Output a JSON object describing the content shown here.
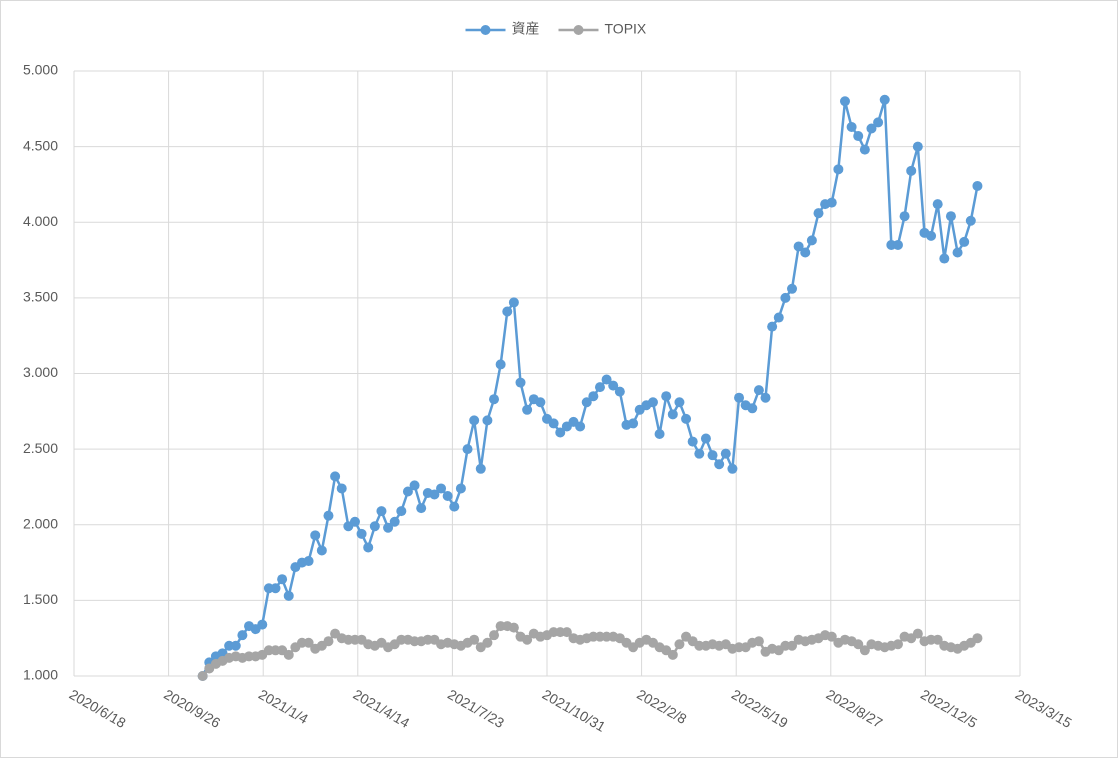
{
  "chart_data": {
    "type": "line",
    "x": [
      "2020/11/1",
      "2020/11/8",
      "2020/11/15",
      "2020/11/22",
      "2020/11/29",
      "2020/12/6",
      "2020/12/13",
      "2020/12/20",
      "2020/12/27",
      "2021/1/3",
      "2021/1/10",
      "2021/1/17",
      "2021/1/24",
      "2021/1/31",
      "2021/2/7",
      "2021/2/14",
      "2021/2/21",
      "2021/2/28",
      "2021/3/7",
      "2021/3/14",
      "2021/3/21",
      "2021/3/28",
      "2021/4/4",
      "2021/4/11",
      "2021/4/18",
      "2021/4/25",
      "2021/5/2",
      "2021/5/9",
      "2021/5/16",
      "2021/5/23",
      "2021/5/30",
      "2021/6/6",
      "2021/6/13",
      "2021/6/20",
      "2021/6/27",
      "2021/7/4",
      "2021/7/11",
      "2021/7/18",
      "2021/7/25",
      "2021/8/1",
      "2021/8/8",
      "2021/8/15",
      "2021/8/22",
      "2021/8/29",
      "2021/9/5",
      "2021/9/12",
      "2021/9/19",
      "2021/9/26",
      "2021/10/3",
      "2021/10/10",
      "2021/10/17",
      "2021/10/24",
      "2021/10/31",
      "2021/11/7",
      "2021/11/14",
      "2021/11/21",
      "2021/11/28",
      "2021/12/5",
      "2021/12/12",
      "2021/12/19",
      "2021/12/26",
      "2022/1/2",
      "2022/1/9",
      "2022/1/16",
      "2022/1/23",
      "2022/1/30",
      "2022/2/6",
      "2022/2/13",
      "2022/2/20",
      "2022/2/27",
      "2022/3/6",
      "2022/3/13",
      "2022/3/20",
      "2022/3/27",
      "2022/4/3",
      "2022/4/10",
      "2022/4/17",
      "2022/4/24",
      "2022/5/1",
      "2022/5/8",
      "2022/5/15",
      "2022/5/22",
      "2022/5/29",
      "2022/6/5",
      "2022/6/12",
      "2022/6/19",
      "2022/6/26",
      "2022/7/3",
      "2022/7/10",
      "2022/7/17",
      "2022/7/24",
      "2022/7/31",
      "2022/8/7",
      "2022/8/14",
      "2022/8/21",
      "2022/8/28",
      "2022/9/4",
      "2022/9/11",
      "2022/9/18",
      "2022/9/25",
      "2022/10/2",
      "2022/10/9",
      "2022/10/16",
      "2022/10/23",
      "2022/10/30",
      "2022/11/6",
      "2022/11/13",
      "2022/11/20",
      "2022/11/27",
      "2022/12/4",
      "2022/12/11",
      "2022/12/18",
      "2022/12/25",
      "2023/1/1",
      "2023/1/8",
      "2023/1/15",
      "2023/1/22",
      "2023/1/29"
    ],
    "series": [
      {
        "name": "資産",
        "color": "#5b9bd5",
        "values": [
          1.0,
          1.09,
          1.13,
          1.15,
          1.2,
          1.2,
          1.27,
          1.33,
          1.31,
          1.34,
          1.58,
          1.58,
          1.64,
          1.53,
          1.72,
          1.75,
          1.76,
          1.93,
          1.83,
          2.06,
          2.32,
          2.24,
          1.99,
          2.02,
          1.94,
          1.85,
          1.99,
          2.09,
          1.98,
          2.02,
          2.09,
          2.22,
          2.26,
          2.11,
          2.21,
          2.2,
          2.24,
          2.19,
          2.12,
          2.24,
          2.5,
          2.69,
          2.37,
          2.69,
          2.83,
          3.06,
          3.41,
          3.47,
          2.94,
          2.76,
          2.83,
          2.81,
          2.7,
          2.67,
          2.61,
          2.65,
          2.68,
          2.65,
          2.81,
          2.85,
          2.91,
          2.96,
          2.92,
          2.88,
          2.66,
          2.67,
          2.76,
          2.79,
          2.81,
          2.6,
          2.85,
          2.73,
          2.81,
          2.7,
          2.55,
          2.47,
          2.57,
          2.46,
          2.4,
          2.47,
          2.37,
          2.84,
          2.79,
          2.77,
          2.89,
          2.84,
          3.31,
          3.37,
          3.5,
          3.56,
          3.84,
          3.8,
          3.88,
          4.06,
          4.12,
          4.13,
          4.35,
          4.8,
          4.63,
          4.57,
          4.48,
          4.62,
          4.66,
          4.81,
          3.85,
          3.85,
          4.04,
          4.34,
          4.5,
          3.93,
          3.91,
          4.12,
          3.76,
          4.04,
          3.8,
          3.87,
          4.01,
          4.24
        ]
      },
      {
        "name": "TOPIX",
        "color": "#a5a5a5",
        "values": [
          1.0,
          1.05,
          1.08,
          1.1,
          1.12,
          1.13,
          1.12,
          1.13,
          1.13,
          1.14,
          1.17,
          1.17,
          1.17,
          1.14,
          1.19,
          1.22,
          1.22,
          1.18,
          1.2,
          1.23,
          1.28,
          1.25,
          1.24,
          1.24,
          1.24,
          1.21,
          1.2,
          1.22,
          1.19,
          1.21,
          1.24,
          1.24,
          1.23,
          1.23,
          1.24,
          1.24,
          1.21,
          1.22,
          1.21,
          1.2,
          1.22,
          1.24,
          1.19,
          1.22,
          1.27,
          1.33,
          1.33,
          1.32,
          1.26,
          1.24,
          1.28,
          1.26,
          1.27,
          1.29,
          1.29,
          1.29,
          1.25,
          1.24,
          1.25,
          1.26,
          1.26,
          1.26,
          1.26,
          1.25,
          1.22,
          1.19,
          1.22,
          1.24,
          1.22,
          1.19,
          1.17,
          1.14,
          1.21,
          1.26,
          1.23,
          1.2,
          1.2,
          1.21,
          1.2,
          1.21,
          1.18,
          1.19,
          1.19,
          1.22,
          1.23,
          1.16,
          1.18,
          1.17,
          1.2,
          1.2,
          1.24,
          1.23,
          1.24,
          1.25,
          1.27,
          1.26,
          1.22,
          1.24,
          1.23,
          1.21,
          1.17,
          1.21,
          1.2,
          1.19,
          1.2,
          1.21,
          1.26,
          1.25,
          1.28,
          1.23,
          1.24,
          1.24,
          1.2,
          1.19,
          1.18,
          1.2,
          1.22,
          1.25
        ]
      }
    ],
    "xlim": [
      "2020/6/18",
      "2023/3/15"
    ],
    "xticks": [
      "2020/6/18",
      "2020/9/26",
      "2021/1/4",
      "2021/4/14",
      "2021/7/23",
      "2021/10/31",
      "2022/2/8",
      "2022/5/19",
      "2022/8/27",
      "2022/12/5",
      "2023/3/15"
    ],
    "ylim": [
      1,
      5
    ],
    "yticks": [
      {
        "value": 1,
        "label": "1.000"
      },
      {
        "value": 1.5,
        "label": "1.500"
      },
      {
        "value": 2,
        "label": "2.000"
      },
      {
        "value": 2.5,
        "label": "2.500"
      },
      {
        "value": 3,
        "label": "3.000"
      },
      {
        "value": 3.5,
        "label": "3.500"
      },
      {
        "value": 4,
        "label": "4.000"
      },
      {
        "value": 4.5,
        "label": "4.500"
      },
      {
        "value": 5,
        "label": "5.000"
      }
    ],
    "grid": true,
    "legend": "top"
  }
}
